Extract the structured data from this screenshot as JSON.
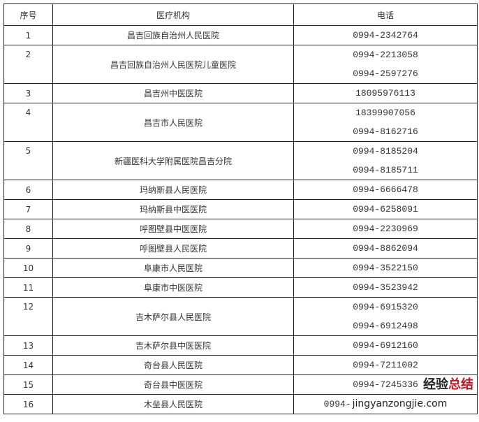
{
  "headers": {
    "seq": "序号",
    "institution": "医疗机构",
    "phone": "电话"
  },
  "rows": [
    {
      "seq": "1",
      "name": "昌吉回族自治州人民医院",
      "phones": [
        "0994-2342764"
      ]
    },
    {
      "seq": "2",
      "name": "昌吉回族自治州人民医院儿童医院",
      "phones": [
        "0994-2213058",
        "0994-2597276"
      ]
    },
    {
      "seq": "3",
      "name": "昌吉州中医医院",
      "phones": [
        "18095976113"
      ]
    },
    {
      "seq": "4",
      "name": "昌吉市人民医院",
      "phones": [
        "18399907056",
        "0994-8162716"
      ]
    },
    {
      "seq": "5",
      "name": "新疆医科大学附属医院昌吉分院",
      "phones": [
        "0994-8185204",
        "0994-8185711"
      ]
    },
    {
      "seq": "6",
      "name": "玛纳斯县人民医院",
      "phones": [
        "0994-6666478"
      ]
    },
    {
      "seq": "7",
      "name": "玛纳斯县中医医院",
      "phones": [
        "0994-6258091"
      ]
    },
    {
      "seq": "8",
      "name": "呼图壁县中医医院",
      "phones": [
        "0994-2230969"
      ]
    },
    {
      "seq": "9",
      "name": "呼图壁县人民医院",
      "phones": [
        "0994-8862094"
      ]
    },
    {
      "seq": "10",
      "name": "阜康市人民医院",
      "phones": [
        "0994-3522150"
      ]
    },
    {
      "seq": "11",
      "name": "阜康市中医医院",
      "phones": [
        "0994-3523942"
      ]
    },
    {
      "seq": "12",
      "name": "吉木萨尔县人民医院",
      "phones": [
        "0994-6915320",
        "0994-6912498"
      ]
    },
    {
      "seq": "13",
      "name": "吉木萨尔县中医医院",
      "phones": [
        "0994-6912160"
      ]
    },
    {
      "seq": "14",
      "name": "奇台县人民医院",
      "phones": [
        "0994-7211002"
      ]
    },
    {
      "seq": "15",
      "name": "奇台县中医医院",
      "phones": [
        "0994-7245336"
      ]
    },
    {
      "seq": "16",
      "name": "木垒县人民医院",
      "phones": [
        "0994-"
      ]
    }
  ],
  "watermark": {
    "part1": "经验",
    "part2": "总结",
    "url": "jingyanzongjie.com"
  }
}
